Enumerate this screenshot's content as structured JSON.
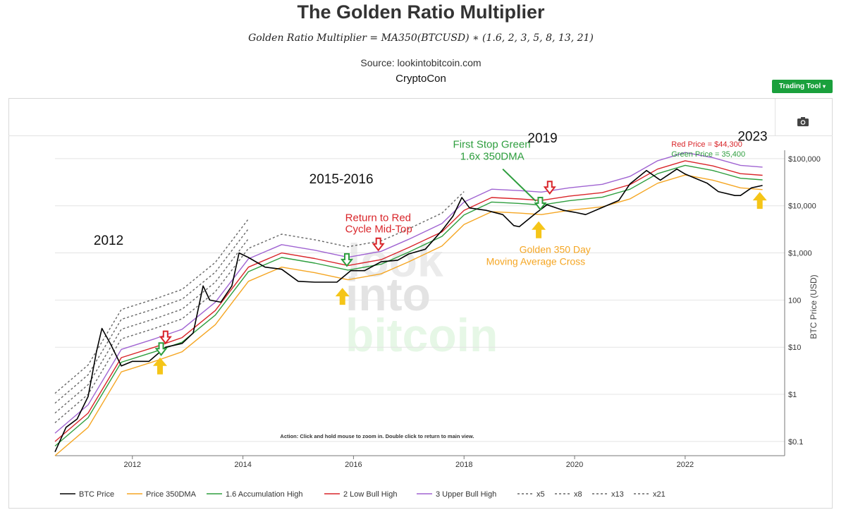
{
  "header": {
    "title": "The Golden Ratio Multiplier",
    "formula": "Golden Ratio Multiplier = MA350(BTCUSD) ∗ (1.6, 2, 3, 5, 8, 13, 21)",
    "source": "Source: lookintobitcoin.com",
    "author": "CryptoCon"
  },
  "toolbar": {
    "trading_tool_label": "Trading Tool",
    "camera_icon": "camera-icon"
  },
  "chart_data": {
    "type": "line",
    "y_scale": "log",
    "ylabel": "BTC Price (USD)",
    "ylim": [
      0.05,
      300000
    ],
    "xlim": [
      2010.6,
      2023.8
    ],
    "x_ticks": [
      2012,
      2014,
      2016,
      2018,
      2020,
      2022
    ],
    "x_tick_labels": [
      "2012",
      "2014",
      "2016",
      "2018",
      "2020",
      "2022"
    ],
    "y_ticks": [
      0.1,
      1,
      10,
      100,
      1000,
      10000,
      100000
    ],
    "y_tick_labels": [
      "$0.1",
      "$1",
      "$10",
      "100",
      "$1,000",
      "$10,000",
      "$100,000"
    ],
    "grid": true,
    "legend_position": "bottom",
    "zoom_hint": "Action: Click and hold mouse to zoom in.  Double click to return to main view.",
    "watermark": [
      "look",
      "into",
      "bitcoin"
    ],
    "series": [
      {
        "name": "BTC Price",
        "color": "#000000",
        "dash": "solid",
        "x": [
          2010.6,
          2010.8,
          2011.0,
          2011.2,
          2011.35,
          2011.45,
          2011.6,
          2011.8,
          2012.0,
          2012.3,
          2012.6,
          2012.9,
          2013.1,
          2013.28,
          2013.4,
          2013.6,
          2013.8,
          2013.93,
          2014.1,
          2014.4,
          2014.7,
          2015.0,
          2015.3,
          2015.7,
          2015.95,
          2016.2,
          2016.5,
          2016.8,
          2017.0,
          2017.3,
          2017.6,
          2017.8,
          2017.96,
          2018.1,
          2018.4,
          2018.7,
          2018.9,
          2019.0,
          2019.3,
          2019.5,
          2019.8,
          2020.0,
          2020.2,
          2020.5,
          2020.8,
          2021.0,
          2021.3,
          2021.55,
          2021.85,
          2022.0,
          2022.4,
          2022.6,
          2022.9,
          2023.0,
          2023.2,
          2023.4
        ],
        "values": [
          0.06,
          0.2,
          0.3,
          0.9,
          8,
          25,
          12,
          4,
          5,
          5,
          10,
          12,
          20,
          200,
          100,
          90,
          200,
          1000,
          800,
          500,
          450,
          250,
          240,
          240,
          420,
          420,
          650,
          700,
          950,
          1200,
          3000,
          6000,
          15000,
          9000,
          8000,
          6500,
          3800,
          3600,
          7000,
          10500,
          8000,
          7300,
          6500,
          9200,
          13000,
          29000,
          56000,
          35000,
          60000,
          47000,
          30000,
          20000,
          16500,
          16500,
          24000,
          27000
        ]
      },
      {
        "name": "Price 350DMA",
        "color": "#f5a623",
        "dash": "solid",
        "x": [
          2010.6,
          2011.2,
          2011.8,
          2012.4,
          2012.9,
          2013.5,
          2014.1,
          2014.7,
          2015.3,
          2015.9,
          2016.5,
          2017.0,
          2017.6,
          2018.0,
          2018.5,
          2019.0,
          2019.4,
          2019.9,
          2020.5,
          2021.0,
          2021.5,
          2022.0,
          2022.5,
          2023.0,
          2023.4
        ],
        "values": [
          0.05,
          0.2,
          3,
          5,
          8,
          30,
          250,
          500,
          380,
          270,
          360,
          650,
          1400,
          4000,
          7500,
          7000,
          6500,
          8000,
          9500,
          14000,
          30000,
          45000,
          35000,
          24000,
          22000
        ]
      },
      {
        "name": "1.6 Accumulation High",
        "color": "#2e9e3e",
        "dash": "solid",
        "multiplier": 1.6,
        "x": [
          2010.6,
          2011.2,
          2011.8,
          2012.4,
          2012.9,
          2013.5,
          2014.1,
          2014.7,
          2015.3,
          2015.9,
          2016.5,
          2017.0,
          2017.6,
          2018.0,
          2018.5,
          2019.0,
          2019.4,
          2019.9,
          2020.5,
          2021.0,
          2021.5,
          2022.0,
          2022.5,
          2023.0,
          2023.4
        ],
        "values": [
          0.08,
          0.32,
          4.8,
          8,
          12.8,
          48,
          400,
          800,
          608,
          432,
          576,
          1040,
          2240,
          6400,
          12000,
          11200,
          10400,
          12800,
          15200,
          22400,
          48000,
          72000,
          56000,
          38400,
          35400
        ]
      },
      {
        "name": "2 Low Bull High",
        "color": "#d9252a",
        "dash": "solid",
        "multiplier": 2,
        "x": [
          2010.6,
          2011.2,
          2011.8,
          2012.4,
          2012.9,
          2013.5,
          2014.1,
          2014.7,
          2015.3,
          2015.9,
          2016.5,
          2017.0,
          2017.6,
          2018.0,
          2018.5,
          2019.0,
          2019.4,
          2019.9,
          2020.5,
          2021.0,
          2021.5,
          2022.0,
          2022.5,
          2023.0,
          2023.4
        ],
        "values": [
          0.1,
          0.4,
          6,
          10,
          16,
          60,
          500,
          1000,
          760,
          540,
          720,
          1300,
          2800,
          8000,
          15000,
          14000,
          13000,
          16000,
          19000,
          28000,
          60000,
          90000,
          70000,
          48000,
          44300
        ]
      },
      {
        "name": "3 Upper Bull High",
        "color": "#a064d2",
        "dash": "solid",
        "multiplier": 3,
        "x": [
          2010.6,
          2011.2,
          2011.8,
          2012.4,
          2012.9,
          2013.5,
          2014.1,
          2014.7,
          2015.3,
          2015.9,
          2016.5,
          2017.0,
          2017.6,
          2018.0,
          2018.5,
          2019.0,
          2019.4,
          2019.9,
          2020.5,
          2021.0,
          2021.5,
          2022.0,
          2022.5,
          2023.0,
          2023.4
        ],
        "values": [
          0.15,
          0.6,
          9,
          15,
          24,
          90,
          750,
          1500,
          1140,
          810,
          1080,
          1950,
          4200,
          12000,
          22500,
          21000,
          19500,
          24000,
          28500,
          42000,
          90000,
          135000,
          105000,
          72000,
          66000
        ]
      },
      {
        "name": "x5",
        "color": "#666666",
        "dash": "dotted",
        "multiplier": 5,
        "x": [
          2010.6,
          2011.2,
          2011.8,
          2012.4,
          2012.9,
          2013.5,
          2014.1,
          2014.7,
          2015.3,
          2015.9,
          2016.5,
          2017.0,
          2017.6,
          2018.0
        ],
        "values": [
          0.25,
          1,
          15,
          25,
          40,
          150,
          1250,
          2500,
          1900,
          1350,
          1800,
          3250,
          7000,
          20000
        ]
      },
      {
        "name": "x8",
        "color": "#666666",
        "dash": "dotted",
        "multiplier": 8,
        "x": [
          2010.6,
          2011.2,
          2011.8,
          2012.4,
          2012.9,
          2013.5,
          2014.1
        ],
        "values": [
          0.4,
          1.6,
          24,
          40,
          64,
          240,
          2000
        ]
      },
      {
        "name": "x13",
        "color": "#666666",
        "dash": "dotted",
        "multiplier": 13,
        "x": [
          2010.6,
          2011.2,
          2011.8,
          2012.4,
          2012.9,
          2013.5,
          2014.1
        ],
        "values": [
          0.65,
          2.6,
          39,
          65,
          104,
          390,
          3250
        ]
      },
      {
        "name": "x21",
        "color": "#666666",
        "dash": "dotted",
        "multiplier": 21,
        "x": [
          2010.6,
          2011.2,
          2011.8,
          2012.4,
          2012.9,
          2013.5,
          2014.1
        ],
        "values": [
          1.05,
          4.2,
          63,
          105,
          168,
          630,
          5250
        ]
      }
    ],
    "annotations": [
      {
        "text": "2012",
        "x": 2011.3,
        "y": 1500,
        "color": "#111111",
        "size": 19
      },
      {
        "text": "2015-2016",
        "x": 2015.2,
        "y": 30000,
        "color": "#111111",
        "size": 19
      },
      {
        "text": "Return to Red",
        "x": 2015.85,
        "y": 4700,
        "color": "#d9252a",
        "size": 15
      },
      {
        "text": "Cycle Mid-Top",
        "x": 2015.85,
        "y": 2700,
        "color": "#d9252a",
        "size": 15
      },
      {
        "text": "First Stop Green",
        "x": 2017.8,
        "y": 170000,
        "color": "#2e9e3e",
        "size": 15
      },
      {
        "text": "1.6x 350DMA",
        "x": 2017.93,
        "y": 95000,
        "color": "#2e9e3e",
        "size": 15
      },
      {
        "text": "2019",
        "x": 2019.15,
        "y": 220000,
        "color": "#111111",
        "size": 19
      },
      {
        "text": "Golden 350 Day",
        "x": 2019.0,
        "y": 1000,
        "color": "#f5a623",
        "size": 14
      },
      {
        "text": "Moving Average Cross",
        "x": 2018.4,
        "y": 560,
        "color": "#f5a623",
        "size": 14
      },
      {
        "text": "2023",
        "x": 2022.95,
        "y": 240000,
        "color": "#111111",
        "size": 19
      },
      {
        "text": "Red Price  = $44,300",
        "x": 2021.75,
        "y": 180000,
        "color": "#d9252a",
        "size": 11
      },
      {
        "text": "Green Price = 35,400",
        "x": 2021.75,
        "y": 110000,
        "color": "#2e9e3e",
        "size": 11
      }
    ],
    "markers": [
      {
        "type": "down-arrow",
        "color": "#d9252a",
        "x": 2012.6,
        "y": 16
      },
      {
        "type": "down-arrow",
        "color": "#2e9e3e",
        "x": 2012.52,
        "y": 9
      },
      {
        "type": "up-arrow",
        "color": "#f5c518",
        "x": 2012.5,
        "y": 4
      },
      {
        "type": "down-arrow",
        "color": "#2e9e3e",
        "x": 2015.88,
        "y": 700
      },
      {
        "type": "up-arrow",
        "color": "#f5c518",
        "x": 2015.8,
        "y": 120
      },
      {
        "type": "down-arrow",
        "color": "#d9252a",
        "x": 2016.45,
        "y": 1500
      },
      {
        "type": "down-arrow",
        "color": "#2e9e3e",
        "x": 2019.38,
        "y": 11000
      },
      {
        "type": "up-arrow",
        "color": "#f5c518",
        "x": 2019.35,
        "y": 3100
      },
      {
        "type": "down-arrow",
        "color": "#d9252a",
        "x": 2019.55,
        "y": 24000
      },
      {
        "type": "up-arrow",
        "color": "#f5c518",
        "x": 2023.35,
        "y": 13000
      }
    ],
    "pointer_line": {
      "from": [
        2018.7,
        60000
      ],
      "to": [
        2019.3,
        12500
      ],
      "color": "#2e9e3e"
    }
  }
}
